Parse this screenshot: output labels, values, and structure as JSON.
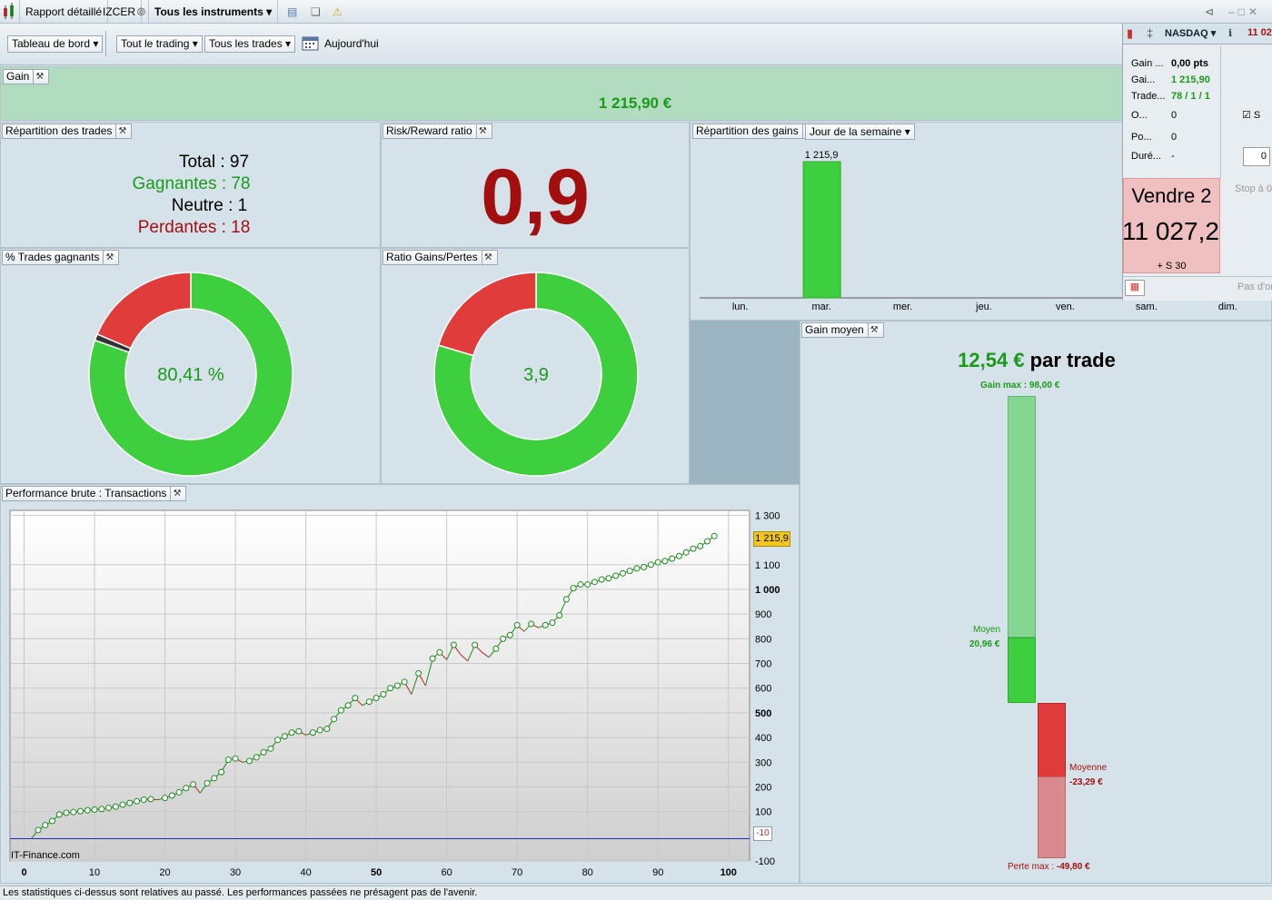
{
  "titlebar": {
    "report": "Rapport détaillé",
    "account": "IZCER",
    "instruments": "Tous les instruments"
  },
  "toolbar": {
    "dashboard": "Tableau de bord",
    "trading": "Tout le trading",
    "trades": "Tous les trades",
    "today": "Aujourd'hui"
  },
  "gain": {
    "title": "Gain",
    "value": "1 215,90 €"
  },
  "repartition": {
    "title": "Répartition des trades",
    "total": "Total : 97",
    "winners": "Gagnantes : 78",
    "neutral": "Neutre : 1",
    "losers": "Perdantes : 18"
  },
  "riskreward": {
    "title": "Risk/Reward ratio",
    "value": "0,9"
  },
  "pct_winning": {
    "title": "% Trades gagnants",
    "value": "80,41 %"
  },
  "ratio": {
    "title": "Ratio Gains/Pertes",
    "value": "3,9"
  },
  "gains_dist": {
    "title": "Répartition des gains",
    "selector": "Jour de la semaine"
  },
  "avg_gain": {
    "title": "Gain moyen",
    "headline": "12,54 €",
    "per_trade": " par trade",
    "max_label": "Gain max : ",
    "max_value": "98,00 €",
    "avg_win_label": "Moyen",
    "avg_win_value": "20,96 €",
    "avg_loss_label": "Moyenne",
    "avg_loss_value": "-23,29 €",
    "min_label": "Perte max : ",
    "min_value": "-49,80 €"
  },
  "perf": {
    "title": "Performance brute : Transactions",
    "brand": "IT-Finance.com",
    "last_label": "1 215,9",
    "baseline_label": "-10"
  },
  "sidepanel": {
    "instrument": "NASDAQ",
    "price_short": "11 02",
    "rows": [
      {
        "label": "Gain ...",
        "value": "0,00 pts"
      },
      {
        "label": "Gai...",
        "value": "1 215,90"
      },
      {
        "label": "Trade...",
        "value": "78 / 1 / 1"
      },
      {
        "label": "O...",
        "value": "0"
      },
      {
        "label": "Po...",
        "value": "0"
      },
      {
        "label": "Duré...",
        "value": "-"
      }
    ],
    "sell_label": "Vendre 2",
    "sell_price": "11 027,2",
    "sell_sub": "+ S 30",
    "stop": "Stop à 0",
    "pas": "Pas d'or",
    "qty": "0",
    "check": "S"
  },
  "statusbar": {
    "text": "Les statistiques ci-dessus sont relatives au passé. Les performances passées ne présagent pas de l'avenir."
  },
  "colors": {
    "green": "#3ecf3e",
    "red": "#e03c3c",
    "darkred": "#a30f0f",
    "textgreen": "#1a9a1a"
  },
  "chart_data": [
    {
      "type": "pie",
      "name": "% Trades gagnants",
      "labels": [
        "Gagnantes",
        "Neutre",
        "Perdantes"
      ],
      "values": [
        78,
        1,
        18
      ]
    },
    {
      "type": "pie",
      "name": "Ratio Gains/Pertes",
      "labels": [
        "Gains",
        "Pertes"
      ],
      "values": [
        79.6,
        20.4
      ]
    },
    {
      "type": "bar",
      "name": "Répartition des gains",
      "categories": [
        "lun.",
        "mar.",
        "mer.",
        "jeu.",
        "ven.",
        "sam.",
        "dim."
      ],
      "values": [
        0,
        1215.9,
        0,
        0,
        0,
        0,
        0
      ],
      "data_labels": [
        "",
        "1 215,9",
        "",
        "",
        "",
        "",
        ""
      ]
    },
    {
      "type": "line",
      "name": "Performance brute",
      "xlim": [
        -2,
        103
      ],
      "ylim": [
        -100,
        1320
      ],
      "x_ticks": [
        0,
        10,
        20,
        30,
        40,
        50,
        60,
        70,
        80,
        90,
        100
      ],
      "y_ticks": [
        {
          "v": 1300,
          "t": "1 300"
        },
        {
          "v": 1100,
          "t": "1 100"
        },
        {
          "v": 1000,
          "t": "1 000"
        },
        {
          "v": 900,
          "t": "900"
        },
        {
          "v": 800,
          "t": "800"
        },
        {
          "v": 700,
          "t": "700"
        },
        {
          "v": 600,
          "t": "600"
        },
        {
          "v": 500,
          "t": "500"
        },
        {
          "v": 400,
          "t": "400"
        },
        {
          "v": 300,
          "t": "300"
        },
        {
          "v": 200,
          "t": "200"
        },
        {
          "v": 100,
          "t": "100"
        },
        {
          "v": -100,
          "t": "-100"
        }
      ],
      "baseline": -10,
      "values": [
        -10,
        25,
        45,
        62,
        88,
        95,
        98,
        102,
        105,
        108,
        110,
        115,
        120,
        128,
        135,
        142,
        148,
        150,
        148,
        155,
        165,
        178,
        195,
        210,
        175,
        215,
        235,
        260,
        310,
        315,
        300,
        305,
        320,
        340,
        355,
        390,
        405,
        420,
        425,
        410,
        420,
        430,
        435,
        475,
        510,
        530,
        560,
        530,
        545,
        560,
        575,
        600,
        610,
        625,
        575,
        660,
        610,
        720,
        745,
        715,
        775,
        735,
        710,
        775,
        745,
        725,
        760,
        800,
        815,
        855,
        830,
        860,
        845,
        855,
        865,
        895,
        960,
        1005,
        1020,
        1020,
        1030,
        1040,
        1045,
        1055,
        1065,
        1075,
        1085,
        1090,
        1100,
        1110,
        1115,
        1125,
        1135,
        1150,
        1165,
        1175,
        1195,
        1215.9
      ]
    }
  ]
}
